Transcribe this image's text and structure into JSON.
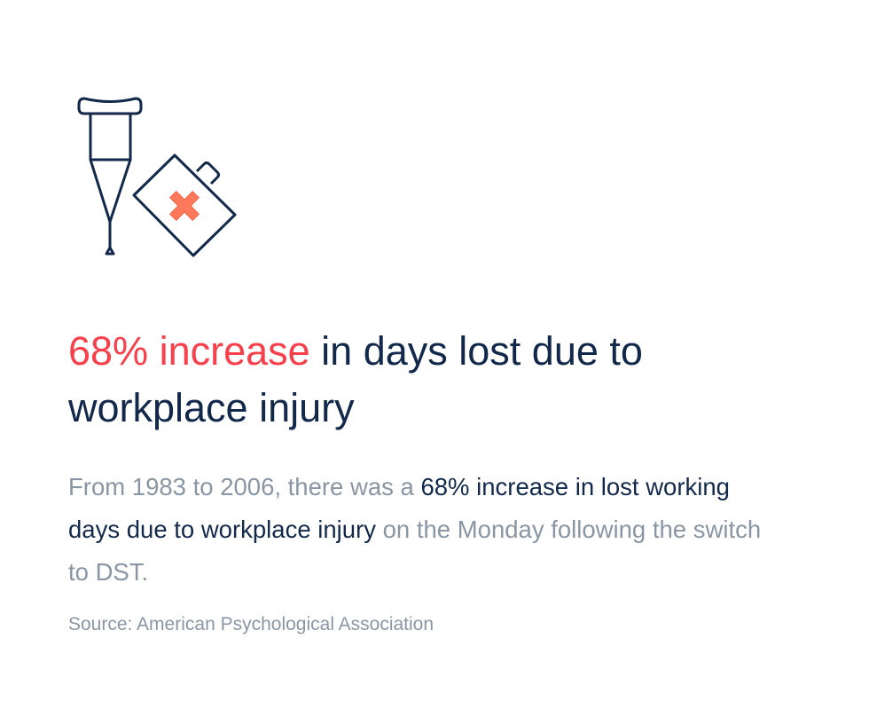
{
  "icon": {
    "name": "crutch-and-first-aid-kit-icon",
    "stroke_color": "#13294b",
    "cross_color": "#ff7a5c"
  },
  "headline": {
    "highlight": "68% increase",
    "rest": " in days lost due to workplace injury"
  },
  "body": {
    "lead": "From 1983 to 2006, there was a ",
    "emphasis": "68% increase in lost working days due to workplace injury",
    "tail": " on the Monday following the switch to DST."
  },
  "source": "Source: American Psychological Association",
  "colors": {
    "highlight": "#f7404b",
    "navy": "#13294b",
    "gray": "#8a96a3"
  }
}
